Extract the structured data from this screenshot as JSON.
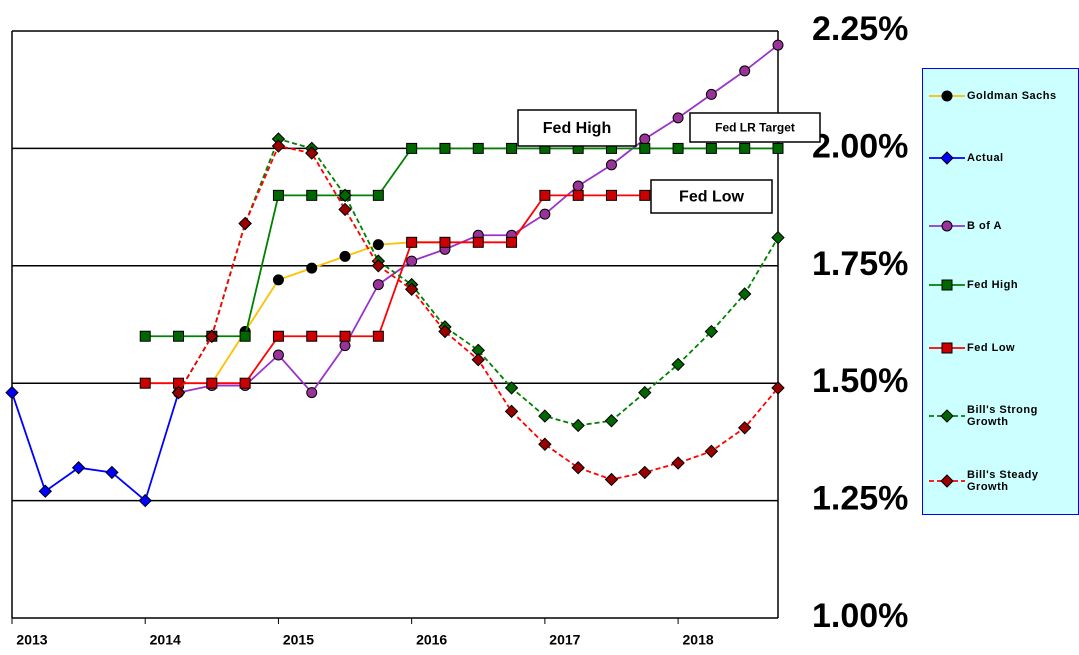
{
  "chart_data": {
    "type": "line",
    "x": [
      2013,
      2013.25,
      2013.5,
      2013.75,
      2014,
      2014.25,
      2014.5,
      2014.75,
      2015,
      2015.25,
      2015.5,
      2015.75,
      2016,
      2016.25,
      2016.5,
      2016.75,
      2017,
      2017.25,
      2017.5,
      2017.75,
      2018,
      2018.25,
      2018.5,
      2018.75
    ],
    "xlim": [
      2013,
      2018.75
    ],
    "xticks": [
      2013,
      2014,
      2015,
      2016,
      2017,
      2018
    ],
    "ylim": [
      1,
      2.25
    ],
    "yticks": [
      {
        "value": 1,
        "label": "1.00%"
      },
      {
        "value": 1.25,
        "label": "1.25%"
      },
      {
        "value": 1.5,
        "label": "1.50%"
      },
      {
        "value": 1.75,
        "label": "1.75%"
      },
      {
        "value": 2,
        "label": "2.00%"
      },
      {
        "value": 2.25,
        "label": "2.25%"
      }
    ],
    "grid": true,
    "legend": "right",
    "annotations": [
      "Fed High",
      "Fed LR Target",
      "Fed Low"
    ],
    "series": [
      {
        "name": "Goldman Sachs",
        "color": "#ffc000",
        "marker": "circle",
        "marker_color": "#000000",
        "dashed": false,
        "values": [
          null,
          null,
          null,
          null,
          null,
          null,
          1.5,
          1.61,
          1.72,
          1.745,
          1.77,
          1.795,
          1.8,
          1.8,
          null,
          null,
          null,
          null,
          null,
          null,
          null,
          null,
          null,
          null
        ]
      },
      {
        "name": "Actual",
        "color": "#0000ff",
        "marker": "diamond",
        "marker_color": "#0000ff",
        "dashed": false,
        "values": [
          1.48,
          1.27,
          1.32,
          1.31,
          1.25,
          1.48,
          null,
          null,
          null,
          null,
          null,
          null,
          null,
          null,
          null,
          null,
          null,
          null,
          null,
          null,
          null,
          null,
          null,
          null
        ]
      },
      {
        "name": "B of A",
        "color": "#9933cc",
        "marker": "circle",
        "marker_color": "#993399",
        "dashed": false,
        "values": [
          null,
          null,
          null,
          null,
          null,
          1.48,
          1.495,
          1.495,
          1.56,
          1.48,
          1.58,
          1.71,
          1.76,
          1.785,
          1.815,
          1.815,
          1.86,
          1.92,
          1.965,
          2.02,
          2.065,
          2.115,
          2.165,
          2.22
        ]
      },
      {
        "name": "Fed High",
        "color": "#008000",
        "marker": "square",
        "marker_color": "#006600",
        "dashed": false,
        "values": [
          null,
          null,
          null,
          null,
          1.6,
          1.6,
          1.6,
          1.6,
          1.9,
          1.9,
          1.9,
          1.9,
          2.0,
          2.0,
          2.0,
          2.0,
          2.0,
          2.0,
          2.0,
          2.0,
          2.0,
          2.0,
          2.0,
          2.0
        ]
      },
      {
        "name": "Fed Low",
        "color": "#ff0000",
        "marker": "square",
        "marker_color": "#cc0000",
        "dashed": false,
        "values": [
          null,
          null,
          null,
          null,
          1.5,
          1.5,
          1.5,
          1.5,
          1.6,
          1.6,
          1.6,
          1.6,
          1.8,
          1.8,
          1.8,
          1.8,
          1.9,
          1.9,
          1.9,
          1.9,
          null,
          null,
          null,
          null
        ]
      },
      {
        "name": "Bill's Strong Growth",
        "color": "#008000",
        "marker": "diamond",
        "marker_color": "#006600",
        "dashed": true,
        "values": [
          null,
          null,
          null,
          null,
          null,
          1.48,
          1.6,
          1.84,
          2.02,
          2.0,
          1.9,
          1.76,
          1.71,
          1.62,
          1.57,
          1.49,
          1.43,
          1.41,
          1.42,
          1.48,
          1.54,
          1.61,
          1.69,
          1.81
        ]
      },
      {
        "name": "Bill's Steady Growth",
        "color": "#ff0000",
        "marker": "diamond",
        "marker_color": "#990000",
        "dashed": true,
        "values": [
          null,
          null,
          null,
          null,
          null,
          1.48,
          1.6,
          1.84,
          2.005,
          1.99,
          1.87,
          1.75,
          1.7,
          1.61,
          1.55,
          1.44,
          1.37,
          1.32,
          1.295,
          1.31,
          1.33,
          1.355,
          1.405,
          1.49
        ]
      }
    ]
  }
}
